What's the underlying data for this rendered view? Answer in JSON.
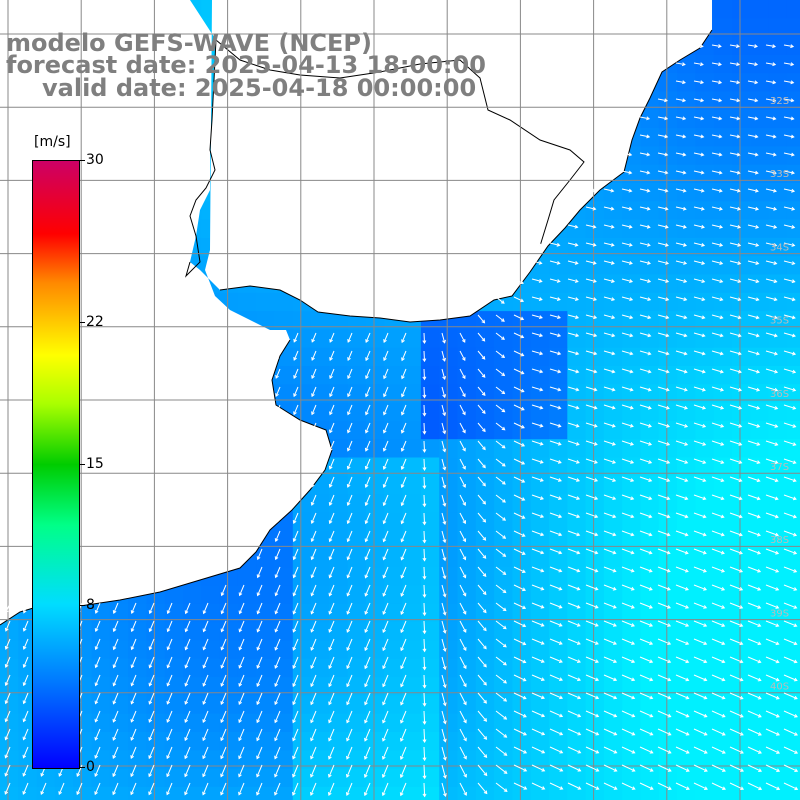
{
  "title": {
    "line1": "modelo GEFS-WAVE (NCEP)",
    "line2": "forecast date: 2025-04-13 18:00:00",
    "line3": "valid date: 2025-04-18 00:00:00"
  },
  "colorbar": {
    "unit": "[m/s]",
    "min": 0,
    "max": 30,
    "ticks": [
      "30",
      "22",
      "15",
      "8",
      "0"
    ],
    "tick_values": [
      30,
      22,
      15,
      8,
      0
    ],
    "colors": [
      "#0000ff",
      "#0077ff",
      "#00ddff",
      "#00ff88",
      "#00cc00",
      "#aaff00",
      "#ffff00",
      "#ff8800",
      "#ff0000",
      "#cc0066"
    ]
  },
  "map": {
    "variable": "wind speed and direction",
    "land_color": "#ffffff",
    "grid_color": "#888888",
    "lat_labels": [
      "32S",
      "33S",
      "34S",
      "35S",
      "36S",
      "37S",
      "38S",
      "39S",
      "40S"
    ],
    "speed_range_shown_ms": [
      0,
      8
    ]
  }
}
